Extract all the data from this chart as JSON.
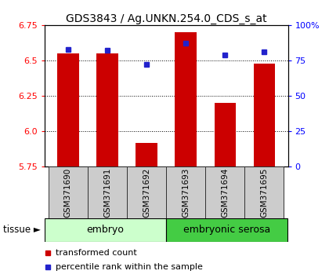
{
  "title": "GDS3843 / Ag.UNKN.254.0_CDS_s_at",
  "samples": [
    "GSM371690",
    "GSM371691",
    "GSM371692",
    "GSM371693",
    "GSM371694",
    "GSM371695"
  ],
  "red_values": [
    6.55,
    6.55,
    5.92,
    6.7,
    6.2,
    6.48
  ],
  "blue_values": [
    83,
    82,
    72,
    87,
    79,
    81
  ],
  "ylim_left": [
    5.75,
    6.75
  ],
  "ylim_right": [
    0,
    100
  ],
  "yticks_left": [
    5.75,
    6.0,
    6.25,
    6.5,
    6.75
  ],
  "yticks_right": [
    0,
    25,
    50,
    75,
    100
  ],
  "ytick_labels_right": [
    "0",
    "25",
    "50",
    "75",
    "100%"
  ],
  "grid_vals": [
    6.0,
    6.25,
    6.5
  ],
  "bar_color": "#cc0000",
  "blue_color": "#2222cc",
  "tissue_groups": [
    {
      "label": "embryo",
      "start": 0,
      "end": 3,
      "color": "#ccffcc"
    },
    {
      "label": "embryonic serosa",
      "start": 3,
      "end": 6,
      "color": "#44cc44"
    }
  ],
  "tissue_label": "tissue",
  "legend_red": "transformed count",
  "legend_blue": "percentile rank within the sample",
  "bg_color": "#ffffff",
  "bar_width": 0.55,
  "base_value": 5.75,
  "label_box_color": "#cccccc",
  "label_box_edge": "#333333"
}
